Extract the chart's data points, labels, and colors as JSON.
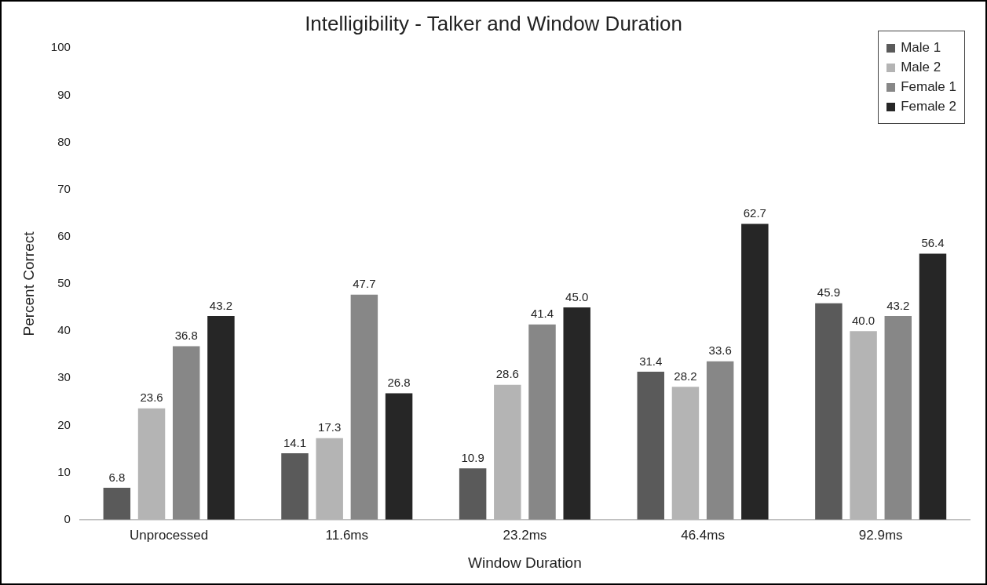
{
  "chart_data": {
    "type": "bar",
    "title": "Intelligibility - Talker and Window Duration",
    "xlabel": "Window Duration",
    "ylabel": "Percent Correct",
    "categories": [
      "Unprocessed",
      "11.6ms",
      "23.2ms",
      "46.4ms",
      "92.9ms"
    ],
    "series": [
      {
        "name": "Male 1",
        "color": "#5a5a5a",
        "values": [
          6.8,
          14.1,
          10.9,
          31.4,
          45.9
        ],
        "value_labels": [
          "6.8",
          "14.1",
          "10.9",
          "31.4",
          "45.9"
        ]
      },
      {
        "name": "Male 2",
        "color": "#b4b4b4",
        "values": [
          23.6,
          17.3,
          28.6,
          28.2,
          40.0
        ],
        "value_labels": [
          "23.6",
          "17.3",
          "28.6",
          "28.2",
          "40.0"
        ]
      },
      {
        "name": "Female 1",
        "color": "#878787",
        "values": [
          36.8,
          47.7,
          41.4,
          33.6,
          43.2
        ],
        "value_labels": [
          "36.8",
          "47.7",
          "41.4",
          "33.6",
          "43.2"
        ]
      },
      {
        "name": "Female 2",
        "color": "#262626",
        "values": [
          43.2,
          26.8,
          45.0,
          62.7,
          56.4
        ],
        "value_labels": [
          "43.2",
          "26.8",
          "45.0",
          "62.7",
          "56.4"
        ]
      }
    ],
    "ylim": [
      0,
      100
    ],
    "yticks": [
      0,
      10,
      20,
      30,
      40,
      50,
      60,
      70,
      80,
      90,
      100
    ],
    "grid": false,
    "legend": "top right"
  }
}
